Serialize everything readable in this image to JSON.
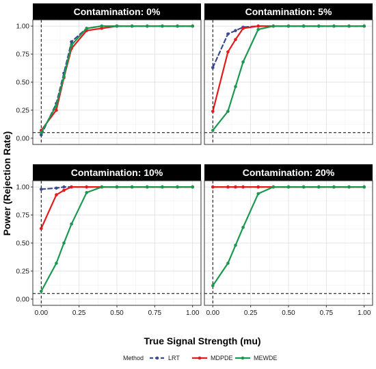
{
  "chart_data": {
    "type": "line",
    "xlabel": "True Signal Strength (mu)",
    "ylabel": "Power (Rejection Rate)",
    "xlim": [
      0,
      1
    ],
    "ylim": [
      0,
      1
    ],
    "x_ticks": [
      "0.00",
      "0.25",
      "0.50",
      "0.75",
      "1.00"
    ],
    "y_ticks": [
      "0.00",
      "0.25",
      "0.50",
      "0.75",
      "1.00"
    ],
    "reference_lines": {
      "vertical_x": 0,
      "horizontal_y": 0.05
    },
    "grid": true,
    "legend": {
      "title": "Method",
      "position": "bottom",
      "entries": [
        {
          "name": "LRT",
          "color": "#3B4B8F",
          "dash": "dashed"
        },
        {
          "name": "MDPDE",
          "color": "#E41A1C",
          "dash": "solid"
        },
        {
          "name": "MEWDE",
          "color": "#1A9850",
          "dash": "solid"
        }
      ]
    },
    "x": [
      0,
      0.1,
      0.15,
      0.2,
      0.3,
      0.4,
      0.5,
      0.6,
      0.7,
      0.8,
      0.9,
      1.0
    ],
    "panels": [
      {
        "title": "Contamination: 0%",
        "series": [
          {
            "name": "LRT",
            "values": [
              0.03,
              0.31,
              0.58,
              0.86,
              0.98,
              1.0,
              1.0,
              1.0,
              1.0,
              1.0,
              1.0,
              1.0
            ]
          },
          {
            "name": "MDPDE",
            "values": [
              0.07,
              0.25,
              0.54,
              0.8,
              0.96,
              0.98,
              1.0,
              1.0,
              1.0,
              1.0,
              1.0,
              1.0
            ]
          },
          {
            "name": "MEWDE",
            "values": [
              0.05,
              0.29,
              0.55,
              0.83,
              0.98,
              1.0,
              1.0,
              1.0,
              1.0,
              1.0,
              1.0,
              1.0
            ]
          }
        ]
      },
      {
        "title": "Contamination: 5%",
        "series": [
          {
            "name": "LRT",
            "values": [
              0.63,
              0.93,
              0.96,
              0.99,
              1.0,
              1.0,
              1.0,
              1.0,
              1.0,
              1.0,
              1.0,
              1.0
            ]
          },
          {
            "name": "MDPDE",
            "values": [
              0.24,
              0.77,
              0.88,
              0.98,
              1.0,
              1.0,
              1.0,
              1.0,
              1.0,
              1.0,
              1.0,
              1.0
            ]
          },
          {
            "name": "MEWDE",
            "values": [
              0.07,
              0.24,
              0.46,
              0.68,
              0.97,
              1.0,
              1.0,
              1.0,
              1.0,
              1.0,
              1.0,
              1.0
            ]
          }
        ]
      },
      {
        "title": "Contamination: 10%",
        "series": [
          {
            "name": "LRT",
            "values": [
              0.98,
              0.99,
              1.0,
              1.0,
              1.0,
              1.0,
              1.0,
              1.0,
              1.0,
              1.0,
              1.0,
              1.0
            ]
          },
          {
            "name": "MDPDE",
            "values": [
              0.63,
              0.93,
              0.97,
              1.0,
              1.0,
              1.0,
              1.0,
              1.0,
              1.0,
              1.0,
              1.0,
              1.0
            ]
          },
          {
            "name": "MEWDE",
            "values": [
              0.07,
              0.32,
              0.5,
              0.67,
              0.95,
              1.0,
              1.0,
              1.0,
              1.0,
              1.0,
              1.0,
              1.0
            ]
          }
        ]
      },
      {
        "title": "Contamination: 20%",
        "series": [
          {
            "name": "LRT",
            "values": [
              1.0,
              1.0,
              1.0,
              1.0,
              1.0,
              1.0,
              1.0,
              1.0,
              1.0,
              1.0,
              1.0,
              1.0
            ]
          },
          {
            "name": "MDPDE",
            "values": [
              1.0,
              1.0,
              1.0,
              1.0,
              1.0,
              1.0,
              1.0,
              1.0,
              1.0,
              1.0,
              1.0,
              1.0
            ]
          },
          {
            "name": "MEWDE",
            "values": [
              0.12,
              0.32,
              0.48,
              0.64,
              0.94,
              1.0,
              1.0,
              1.0,
              1.0,
              1.0,
              1.0,
              1.0
            ]
          }
        ]
      }
    ]
  }
}
